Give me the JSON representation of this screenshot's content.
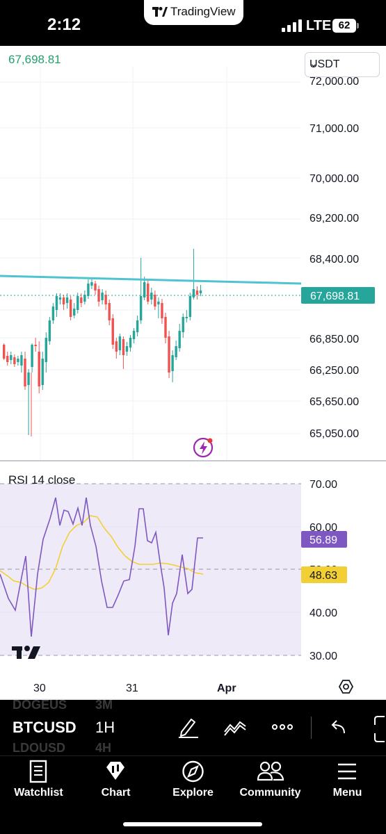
{
  "status_bar": {
    "time": "2:12",
    "network": "LTE",
    "battery": "62",
    "app_badge": "TradingView"
  },
  "chart": {
    "last_price": "67,698.81",
    "currency": "USDT",
    "price_axis": [
      "72,000.00",
      "71,000.00",
      "70,000.00",
      "69,200.00",
      "68,400.00",
      "66,850.00",
      "66,250.00",
      "65,650.00",
      "65,050.00"
    ],
    "price_marker": "67,698.81",
    "resistance_line_color": "#4fc3d1",
    "up_color": "#26a69a",
    "down_color": "#ef5350",
    "time_axis": [
      "30",
      "31",
      "Apr"
    ]
  },
  "rsi": {
    "title": "RSI 14 close",
    "axis": [
      "70.00",
      "60.00",
      "50.00",
      "40.00",
      "30.00"
    ],
    "rsi_value": "56.89",
    "ma_value": "48.63",
    "rsi_color": "#7e57c2",
    "ma_color": "#f2d035"
  },
  "toolbar": {
    "symbol": "BTCUSD",
    "symbol_prev": "DOGEUS",
    "symbol_next": "LDOUSD",
    "interval": "1H",
    "interval_prev": "3M",
    "interval_next": "4H"
  },
  "tabs": [
    {
      "label": "Watchlist",
      "icon": "watchlist-icon"
    },
    {
      "label": "Chart",
      "icon": "chart-icon"
    },
    {
      "label": "Explore",
      "icon": "compass-icon"
    },
    {
      "label": "Community",
      "icon": "community-icon"
    },
    {
      "label": "Menu",
      "icon": "menu-icon"
    }
  ]
}
